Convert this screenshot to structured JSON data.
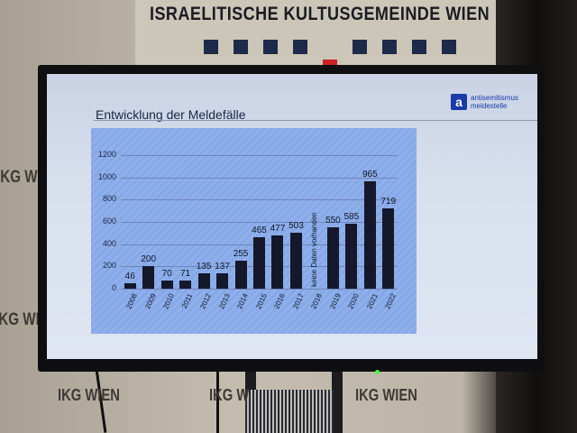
{
  "backdrop": {
    "banner_title": "ISRAELITISCHE KULTUSGEMEINDE WIEN",
    "side_logo": "IKG WIEN",
    "bottom_logos": [
      "IKG WIEN",
      "IKG W",
      "IKG WIEN"
    ],
    "accent_navy": "#1e2a4a",
    "accent_red": "#cc2222"
  },
  "slide": {
    "title": "Entwicklung der Meldefälle",
    "logo_mark": "a",
    "logo_line1": "antisemitismus",
    "logo_line2": "meldestelle",
    "brand_color": "#1a3aa8"
  },
  "chart_data": {
    "type": "bar",
    "title": "Entwicklung der Meldefälle",
    "xlabel": "",
    "ylabel": "",
    "categories": [
      "2008",
      "2009",
      "2010",
      "2011",
      "2012",
      "2013",
      "2014",
      "2015",
      "2016",
      "2017",
      "2018",
      "2019",
      "2020",
      "2021",
      "2022"
    ],
    "values": [
      46,
      200,
      70,
      71,
      135,
      137,
      255,
      465,
      477,
      503,
      null,
      550,
      585,
      965,
      719
    ],
    "annotations": [
      {
        "category": "2018",
        "text": "keine Daten vorhanden"
      }
    ],
    "yticks": [
      0,
      200,
      400,
      600,
      800,
      1000,
      1200
    ],
    "ylim": [
      0,
      1200
    ],
    "grid": true,
    "legend": null,
    "bar_color": "#14182a"
  }
}
